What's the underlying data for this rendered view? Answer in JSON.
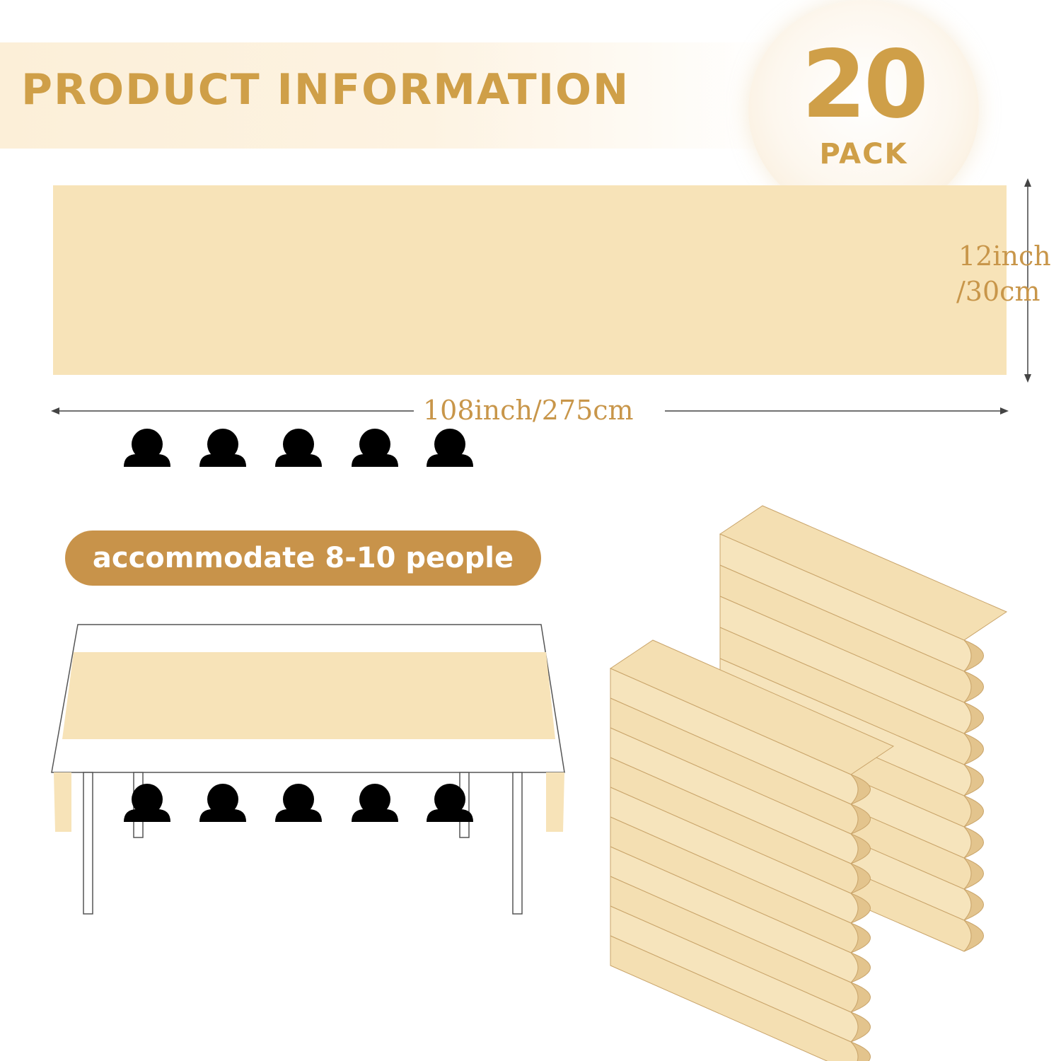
{
  "header": {
    "title": "PRODUCT INFORMATION"
  },
  "badge": {
    "number": "20",
    "label": "PACK"
  },
  "dimensions": {
    "width_line1": "12inch",
    "width_line2": "/30cm",
    "length": "108inch/275cm"
  },
  "capacity": {
    "label": "accommodate 8-10 people",
    "people_count": 10
  },
  "colors": {
    "accent": "#c8934a",
    "runner": "#f7e3b8",
    "banner": "#fcefd8",
    "person": "#000000"
  },
  "icons": {
    "person": "person-icon"
  }
}
